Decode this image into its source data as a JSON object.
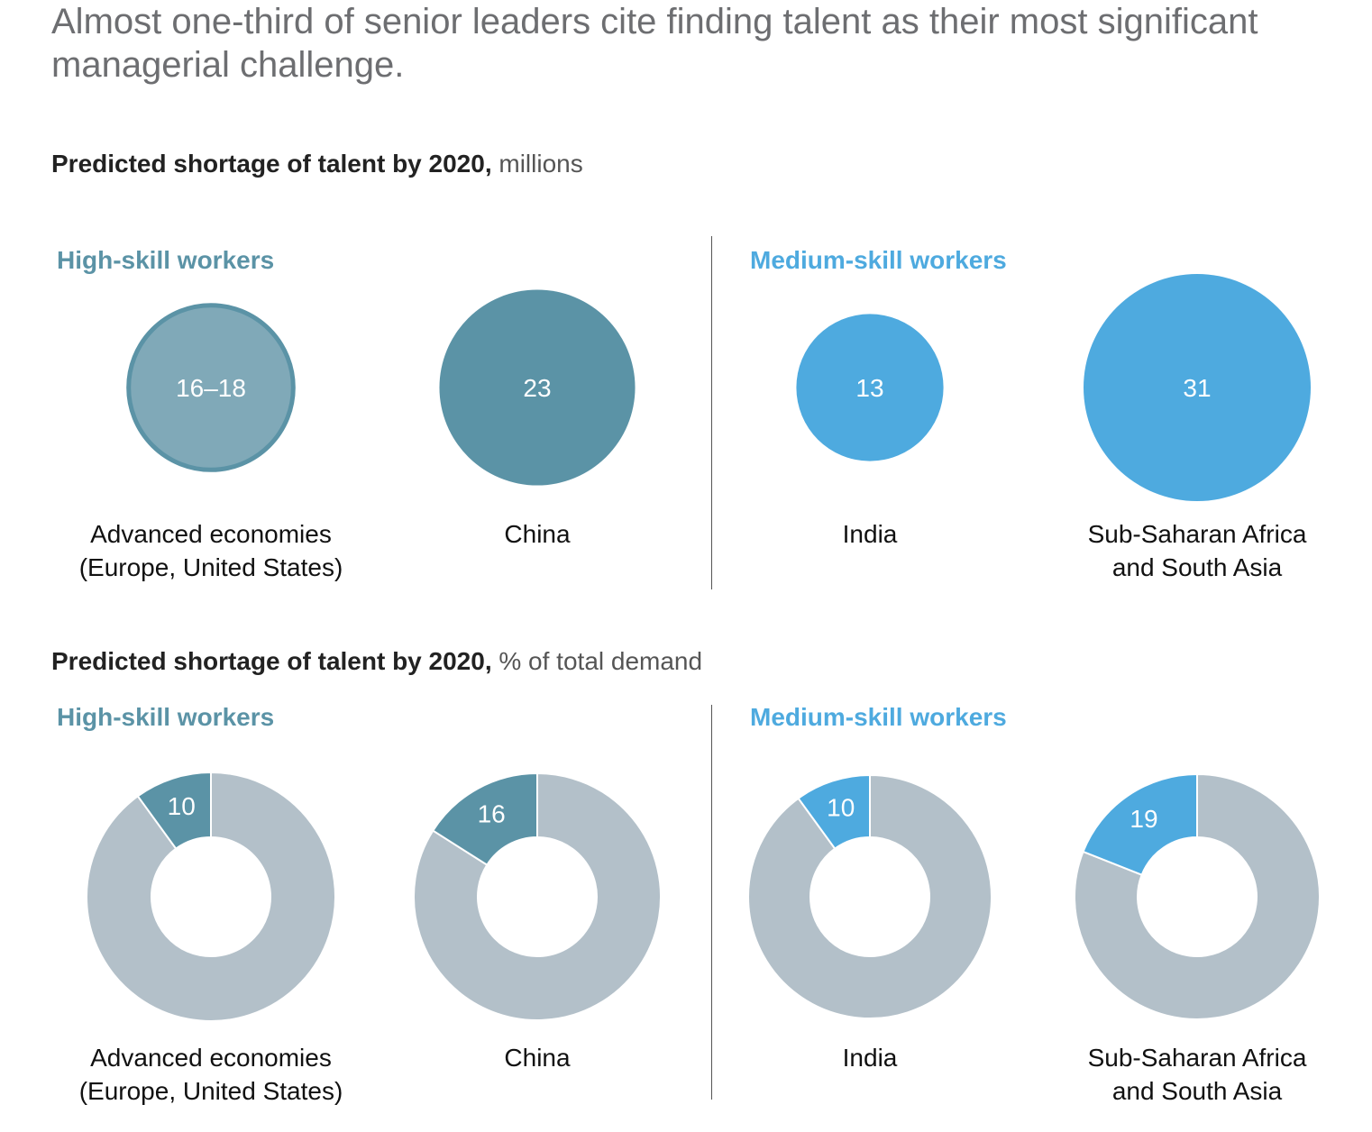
{
  "headline": "Almost one-third of senior leaders cite finding talent as their most significant managerial challenge.",
  "section1": {
    "title_bold": "Predicted shortage of talent by 2020,",
    "title_unit": "millions",
    "groups": [
      {
        "label": "High-skill workers",
        "color": "#5b93a6"
      },
      {
        "label": "Medium-skill workers",
        "color": "#4eaadf"
      }
    ]
  },
  "section2": {
    "title_bold": "Predicted shortage of talent by 2020,",
    "title_unit": "% of total demand",
    "groups": [
      {
        "label": "High-skill workers",
        "color": "#5b93a6"
      },
      {
        "label": "Medium-skill workers",
        "color": "#4eaadf"
      }
    ]
  },
  "colors": {
    "high_skill": "#5b93a6",
    "high_skill_light": "#80a9b8",
    "medium_skill": "#4eaadf",
    "remainder": "#b3c0c9"
  },
  "chart_data": [
    {
      "type": "bubble",
      "title": "Predicted shortage of talent by 2020, millions",
      "categories": [
        [
          "Advanced economies",
          "(Europe, United States)"
        ],
        [
          "China"
        ],
        [
          "India"
        ],
        [
          "Sub-Saharan Africa",
          "and South Asia"
        ]
      ],
      "groups": [
        "High-skill workers",
        "High-skill workers",
        "Medium-skill workers",
        "Medium-skill workers"
      ],
      "values": [
        17,
        23,
        13,
        31
      ],
      "value_labels": [
        "16–18",
        "23",
        "13",
        "31"
      ]
    },
    {
      "type": "pie",
      "title": "Predicted shortage of talent by 2020, % of total demand",
      "categories": [
        [
          "Advanced economies",
          "(Europe, United States)"
        ],
        [
          "China"
        ],
        [
          "India"
        ],
        [
          "Sub-Saharan Africa",
          "and South Asia"
        ]
      ],
      "groups": [
        "High-skill workers",
        "High-skill workers",
        "Medium-skill workers",
        "Medium-skill workers"
      ],
      "values": [
        10,
        16,
        10,
        19
      ],
      "value_labels": [
        "10",
        "16",
        "10",
        "19"
      ]
    }
  ]
}
